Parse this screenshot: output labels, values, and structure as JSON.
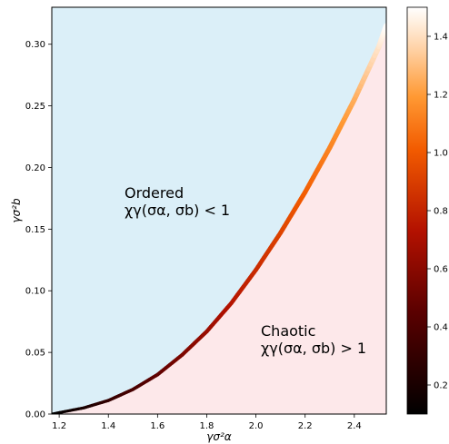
{
  "chart_data": {
    "type": "area",
    "title": "",
    "xlabel": "γσ²α",
    "ylabel": "γσ²b",
    "xlim": [
      1.17,
      2.53
    ],
    "ylim": [
      0.0,
      0.33
    ],
    "x_ticks": [
      "1.2",
      "1.4",
      "1.6",
      "1.8",
      "2.0",
      "2.2",
      "2.4"
    ],
    "x_tick_values": [
      1.2,
      1.4,
      1.6,
      1.8,
      2.0,
      2.2,
      2.4
    ],
    "y_ticks": [
      "0.00",
      "0.05",
      "0.10",
      "0.15",
      "0.20",
      "0.25",
      "0.30"
    ],
    "y_tick_values": [
      0.0,
      0.05,
      0.1,
      0.15,
      0.2,
      0.25,
      0.3
    ],
    "boundary_curve": {
      "description": "order-to-chaos transition line, colored by value on colorbar",
      "x": [
        1.17,
        1.3,
        1.4,
        1.5,
        1.6,
        1.7,
        1.8,
        1.9,
        2.0,
        2.1,
        2.2,
        2.3,
        2.4,
        2.5,
        2.53
      ],
      "y": [
        0.0,
        0.005,
        0.011,
        0.02,
        0.032,
        0.048,
        0.067,
        0.09,
        0.117,
        0.147,
        0.18,
        0.216,
        0.255,
        0.298,
        0.315
      ],
      "color_values": [
        0.1,
        0.2,
        0.3,
        0.38,
        0.47,
        0.56,
        0.65,
        0.74,
        0.83,
        0.92,
        1.02,
        1.13,
        1.25,
        1.42,
        1.5
      ]
    },
    "regions": [
      {
        "name": "ordered",
        "line1": "Ordered",
        "line2": "χγ(σα, σb) < 1",
        "color": "#dbeff8"
      },
      {
        "name": "chaotic",
        "line1": "Chaotic",
        "line2": "χγ(σα, σb) > 1",
        "color": "#fde8ea"
      }
    ],
    "colorbar": {
      "colormap": "gist_heat",
      "range": [
        0.1,
        1.5
      ],
      "ticks": [
        "0.2",
        "0.4",
        "0.6",
        "0.8",
        "1.0",
        "1.2",
        "1.4"
      ],
      "tick_values": [
        0.2,
        0.4,
        0.6,
        0.8,
        1.0,
        1.2,
        1.4
      ]
    },
    "grid": false,
    "legend": "none"
  }
}
